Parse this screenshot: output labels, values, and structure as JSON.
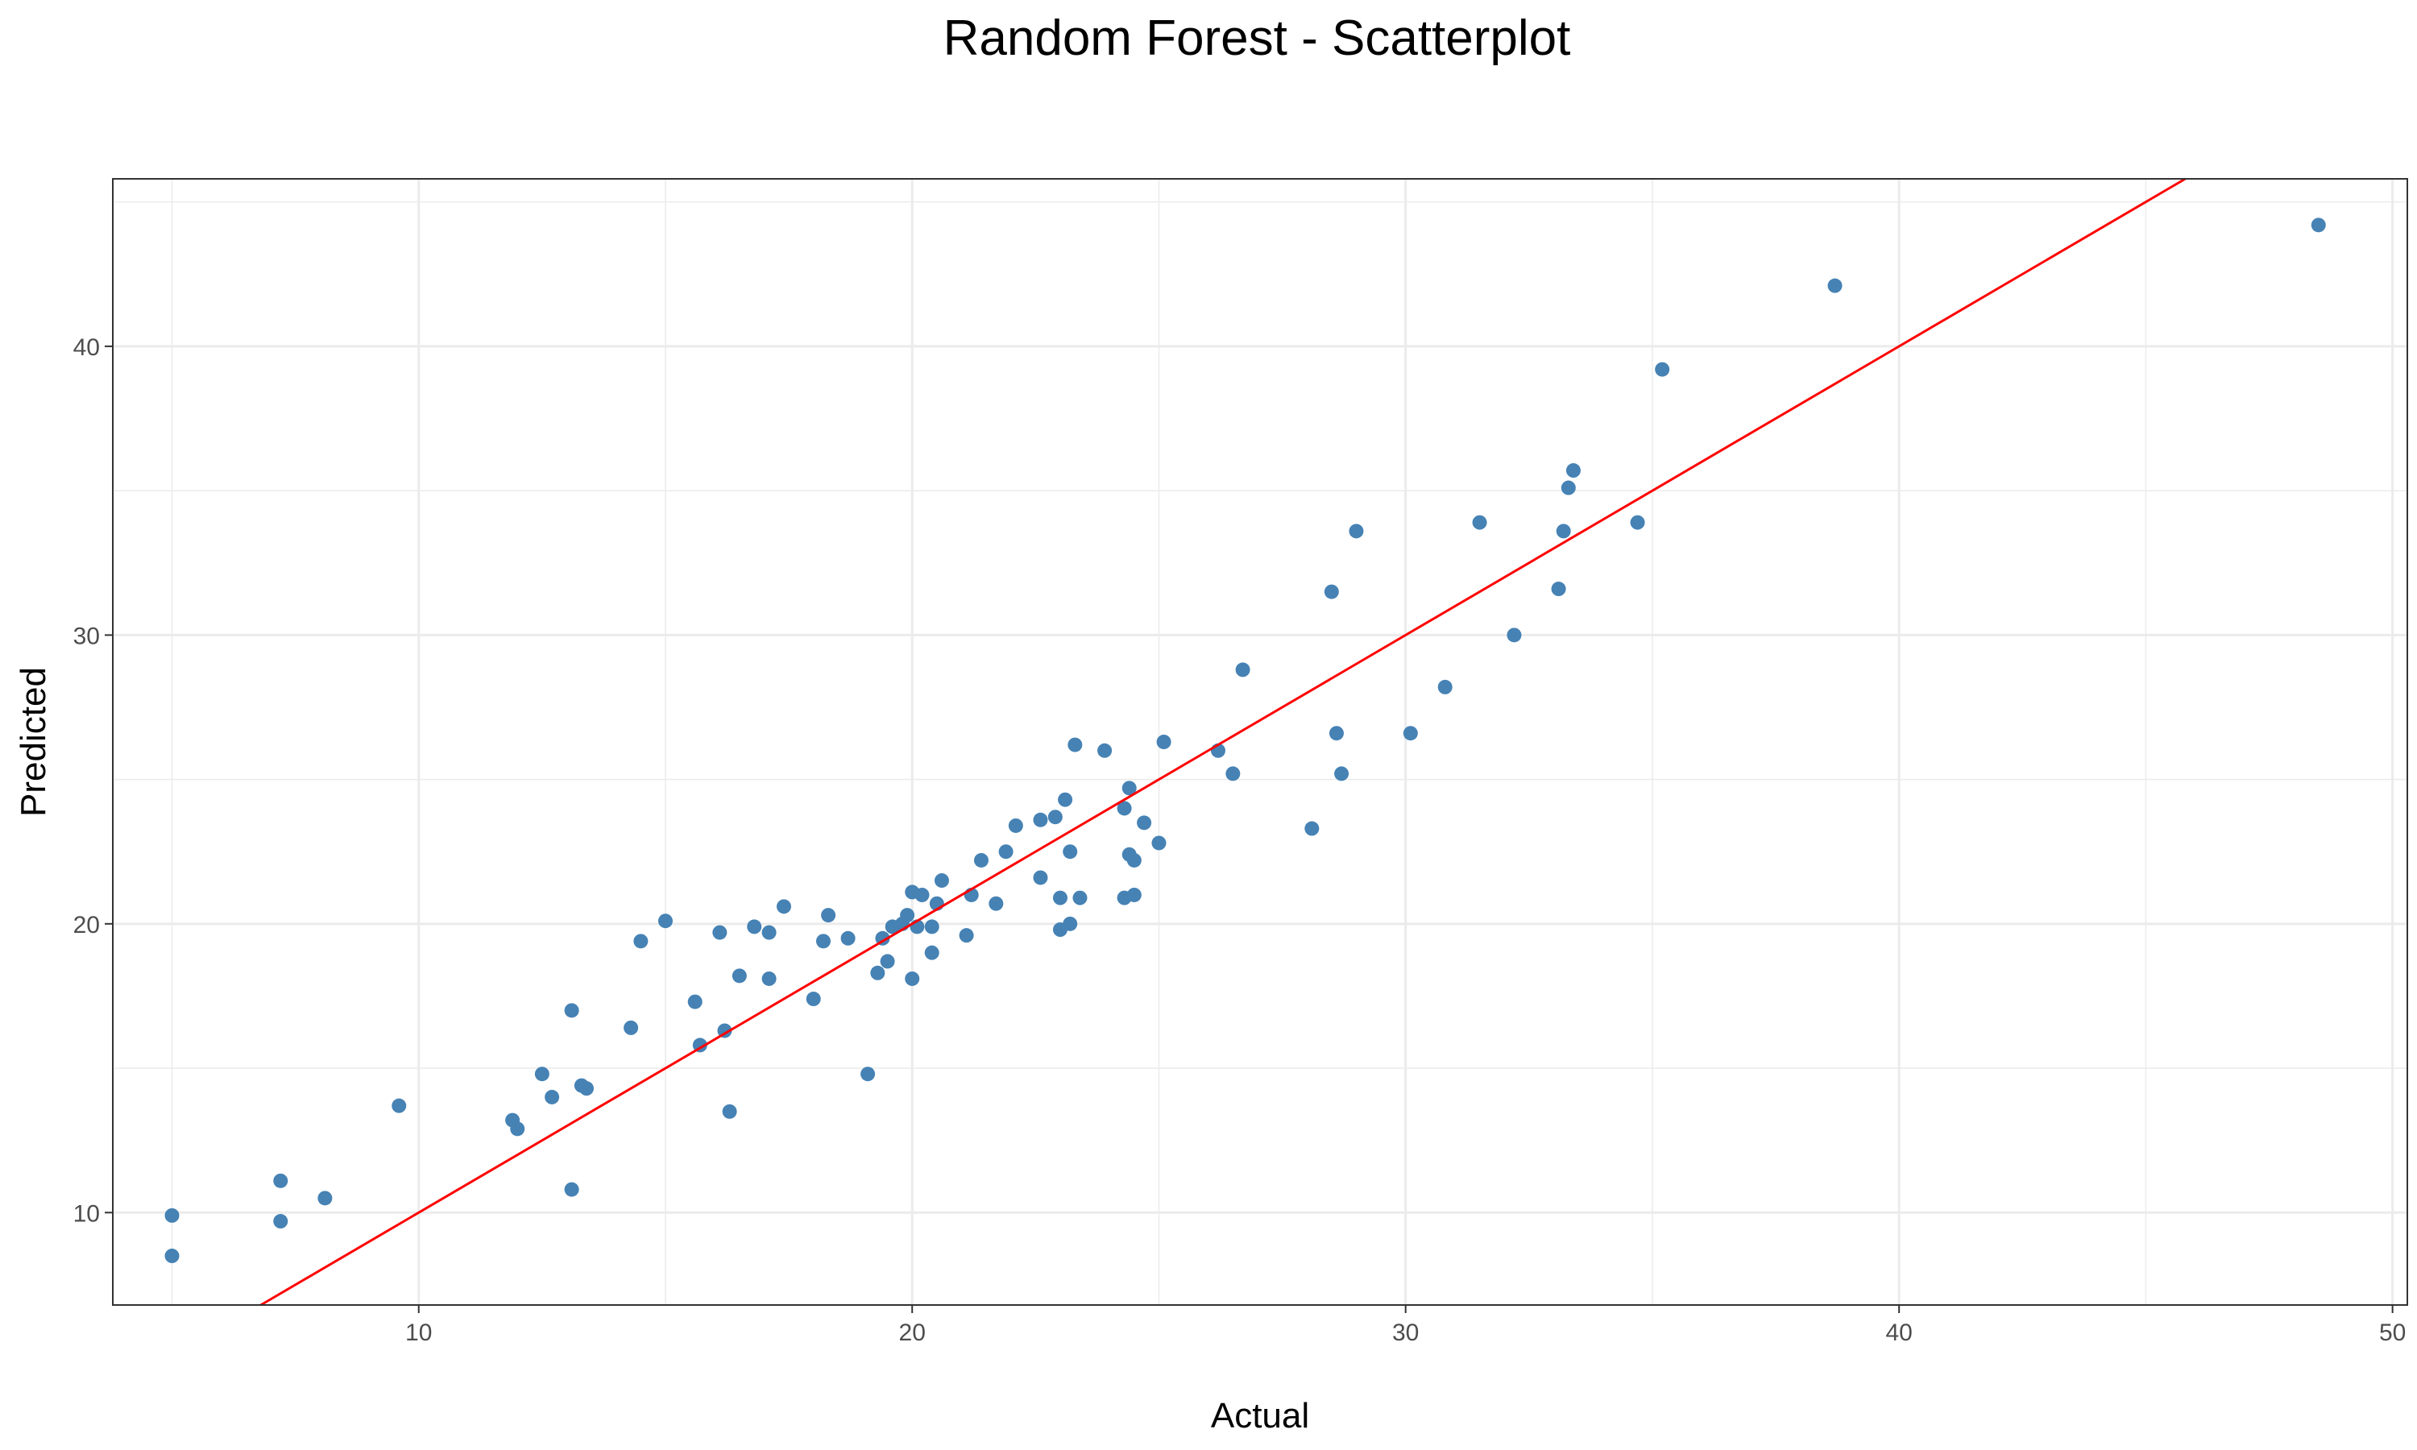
{
  "chart_data": {
    "type": "scatter",
    "title": "Random Forest - Scatterplot",
    "xlabel": "Actual",
    "ylabel": "Predicted",
    "xlim": [
      3.8,
      50.3
    ],
    "ylim": [
      6.8,
      45.8
    ],
    "x_ticks": [
      10,
      20,
      30,
      40,
      50
    ],
    "y_ticks": [
      10,
      20,
      30,
      40
    ],
    "grid": true,
    "legend": "none",
    "point_color": "#4682B4",
    "line_color": "#FF0000",
    "reference_line": {
      "slope": 1,
      "intercept": 0
    },
    "points": [
      [
        5.0,
        9.9
      ],
      [
        5.0,
        8.5
      ],
      [
        7.2,
        11.1
      ],
      [
        7.2,
        9.7
      ],
      [
        8.1,
        10.5
      ],
      [
        9.6,
        13.7
      ],
      [
        11.9,
        13.2
      ],
      [
        12.0,
        12.9
      ],
      [
        12.5,
        14.8
      ],
      [
        12.7,
        14.0
      ],
      [
        13.1,
        17.0
      ],
      [
        13.1,
        10.8
      ],
      [
        13.3,
        14.4
      ],
      [
        13.4,
        14.3
      ],
      [
        14.3,
        16.4
      ],
      [
        14.5,
        19.4
      ],
      [
        15.0,
        20.1
      ],
      [
        15.6,
        17.3
      ],
      [
        15.7,
        15.8
      ],
      [
        16.1,
        19.7
      ],
      [
        16.2,
        16.3
      ],
      [
        16.3,
        13.5
      ],
      [
        16.5,
        18.2
      ],
      [
        16.8,
        19.9
      ],
      [
        17.1,
        19.7
      ],
      [
        17.1,
        18.1
      ],
      [
        17.4,
        20.6
      ],
      [
        18.0,
        17.4
      ],
      [
        18.2,
        19.4
      ],
      [
        18.3,
        20.3
      ],
      [
        18.7,
        19.5
      ],
      [
        19.1,
        14.8
      ],
      [
        19.3,
        18.3
      ],
      [
        19.4,
        19.5
      ],
      [
        19.5,
        18.7
      ],
      [
        19.6,
        19.9
      ],
      [
        19.8,
        20.0
      ],
      [
        19.9,
        20.3
      ],
      [
        20.0,
        21.1
      ],
      [
        20.0,
        18.1
      ],
      [
        20.1,
        19.9
      ],
      [
        20.2,
        21.0
      ],
      [
        20.4,
        19.9
      ],
      [
        20.4,
        19.0
      ],
      [
        20.5,
        20.7
      ],
      [
        20.6,
        21.5
      ],
      [
        21.1,
        19.6
      ],
      [
        21.2,
        21.0
      ],
      [
        21.4,
        22.2
      ],
      [
        21.7,
        20.7
      ],
      [
        21.9,
        22.5
      ],
      [
        22.1,
        23.4
      ],
      [
        22.6,
        23.6
      ],
      [
        22.6,
        21.6
      ],
      [
        22.9,
        23.7
      ],
      [
        23.0,
        20.9
      ],
      [
        23.0,
        19.8
      ],
      [
        23.1,
        24.3
      ],
      [
        23.2,
        22.5
      ],
      [
        23.2,
        20.0
      ],
      [
        23.3,
        26.2
      ],
      [
        23.4,
        20.9
      ],
      [
        23.9,
        26.0
      ],
      [
        24.3,
        24.0
      ],
      [
        24.3,
        20.9
      ],
      [
        24.4,
        24.7
      ],
      [
        24.4,
        22.4
      ],
      [
        24.5,
        22.2
      ],
      [
        24.5,
        21.0
      ],
      [
        24.7,
        23.5
      ],
      [
        25.0,
        22.8
      ],
      [
        25.1,
        26.3
      ],
      [
        26.2,
        26.0
      ],
      [
        26.5,
        25.2
      ],
      [
        26.7,
        28.8
      ],
      [
        28.1,
        23.3
      ],
      [
        28.5,
        31.5
      ],
      [
        28.6,
        26.6
      ],
      [
        28.7,
        25.2
      ],
      [
        29.0,
        33.6
      ],
      [
        30.1,
        26.6
      ],
      [
        30.8,
        28.2
      ],
      [
        31.5,
        33.9
      ],
      [
        32.2,
        30.0
      ],
      [
        33.1,
        31.6
      ],
      [
        33.2,
        33.6
      ],
      [
        33.3,
        35.1
      ],
      [
        33.4,
        35.7
      ],
      [
        34.7,
        33.9
      ],
      [
        35.2,
        39.2
      ],
      [
        38.7,
        42.1
      ],
      [
        48.5,
        44.2
      ]
    ]
  }
}
